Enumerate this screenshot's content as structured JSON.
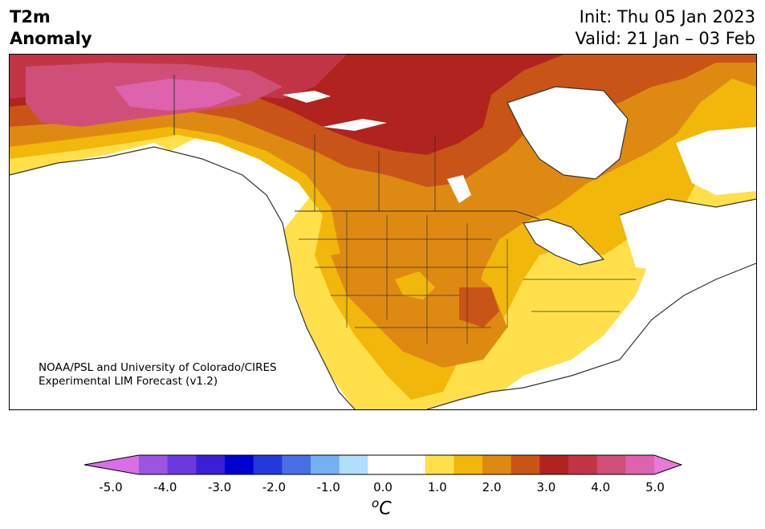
{
  "title": {
    "left_line1": "T2m",
    "left_line2": "Anomaly",
    "init": "Init: Thu 05 Jan 2023",
    "valid": "Valid: 21 Jan – 03 Feb"
  },
  "credit": {
    "line1": "NOAA/PSL and University of Colorado/CIRES",
    "line2": "Experimental LIM Forecast (v1.2)"
  },
  "colorbar": {
    "unit_base": "o",
    "unit_letter": "C",
    "ticks": [
      "-5.0",
      "-4.0",
      "-3.0",
      "-2.0",
      "-1.0",
      "0.0",
      "1.0",
      "2.0",
      "3.0",
      "4.0",
      "5.0"
    ],
    "colors": [
      "#d86fe8",
      "#9b55e0",
      "#6a3ae0",
      "#3a1fd6",
      "#0000d0",
      "#2438dc",
      "#4a6ee6",
      "#74b0f2",
      "#b0defc",
      "#ffffff",
      "#ffffff",
      "#ffe04a",
      "#f2b70b",
      "#de8a12",
      "#c95418",
      "#b0231f",
      "#c13547",
      "#d04f78",
      "#dc63ac",
      "#e67ad8"
    ]
  },
  "map": {
    "variable": "2m temperature anomaly",
    "region": "North America",
    "land_color": "#ffffff",
    "border_color": "#333333"
  }
}
